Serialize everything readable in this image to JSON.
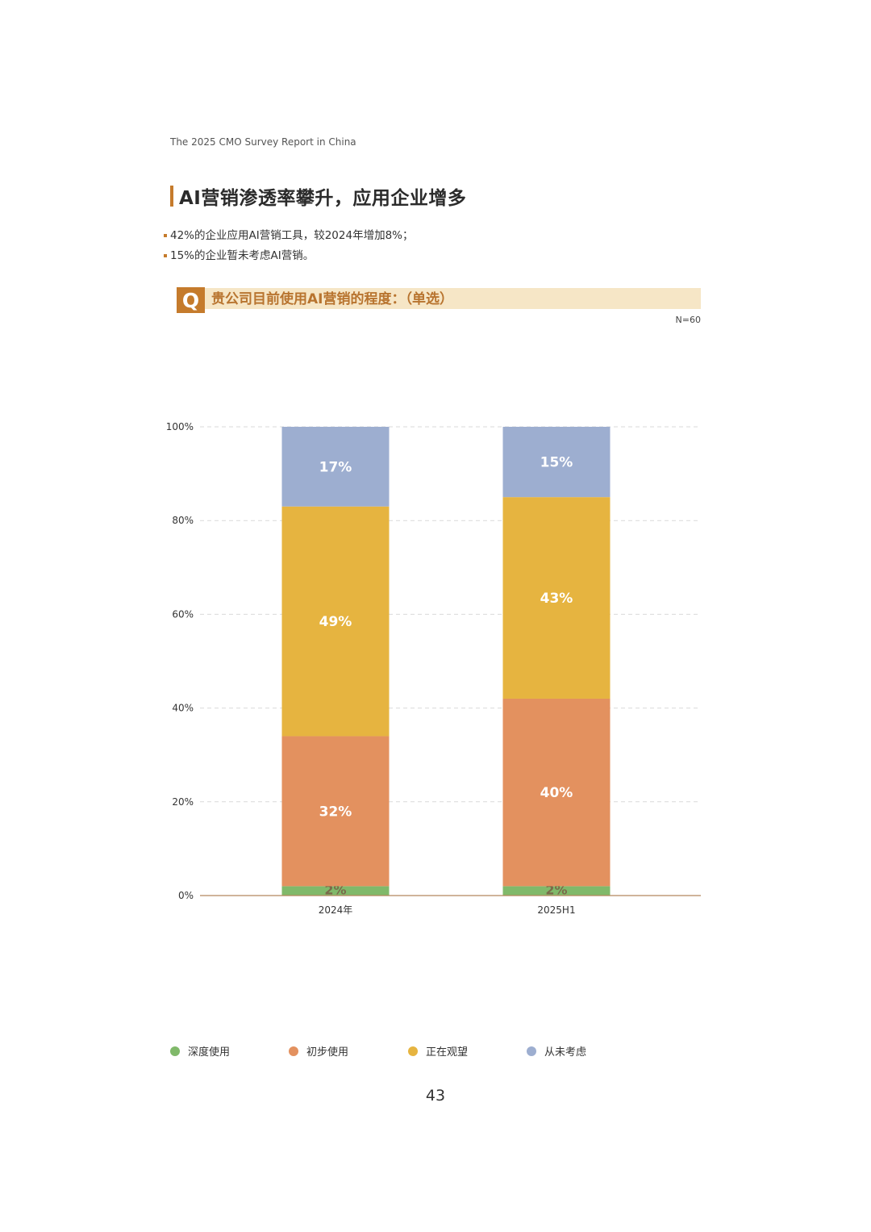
{
  "header": {
    "report_title": "The 2025 CMO Survey Report in China"
  },
  "section": {
    "title": "AI营销渗透率攀升，应用企业增多",
    "bullets": [
      "42%的企业应用AI营销工具，较2024年增加8%；",
      "15%的企业暂未考虑AI营销。"
    ]
  },
  "question": {
    "icon_letter": "Q",
    "text": "贵公司目前使用AI营销的程度：（单选）",
    "sample_size": "N=60"
  },
  "chart_data": {
    "type": "bar",
    "stacked": true,
    "categories": [
      "2024年",
      "2025H1"
    ],
    "series": [
      {
        "name": "深度使用",
        "values": [
          2,
          2
        ],
        "labels": [
          "2%",
          "2%"
        ],
        "color": "#80b96a"
      },
      {
        "name": "初步使用",
        "values": [
          32,
          40
        ],
        "labels": [
          "32%",
          "40%"
        ],
        "color": "#e3915f"
      },
      {
        "name": "正在观望",
        "values": [
          49,
          43
        ],
        "labels": [
          "49%",
          "43%"
        ],
        "color": "#e6b440"
      },
      {
        "name": "从未考虑",
        "values": [
          17,
          15
        ],
        "labels": [
          "17%",
          "15%"
        ],
        "color": "#9daed0"
      }
    ],
    "yticks": [
      "0%",
      "20%",
      "40%",
      "60%",
      "80%",
      "100%"
    ],
    "ylim": [
      0,
      100
    ],
    "grid": true,
    "legend_position": "bottom"
  },
  "footer": {
    "page_number": "43"
  }
}
